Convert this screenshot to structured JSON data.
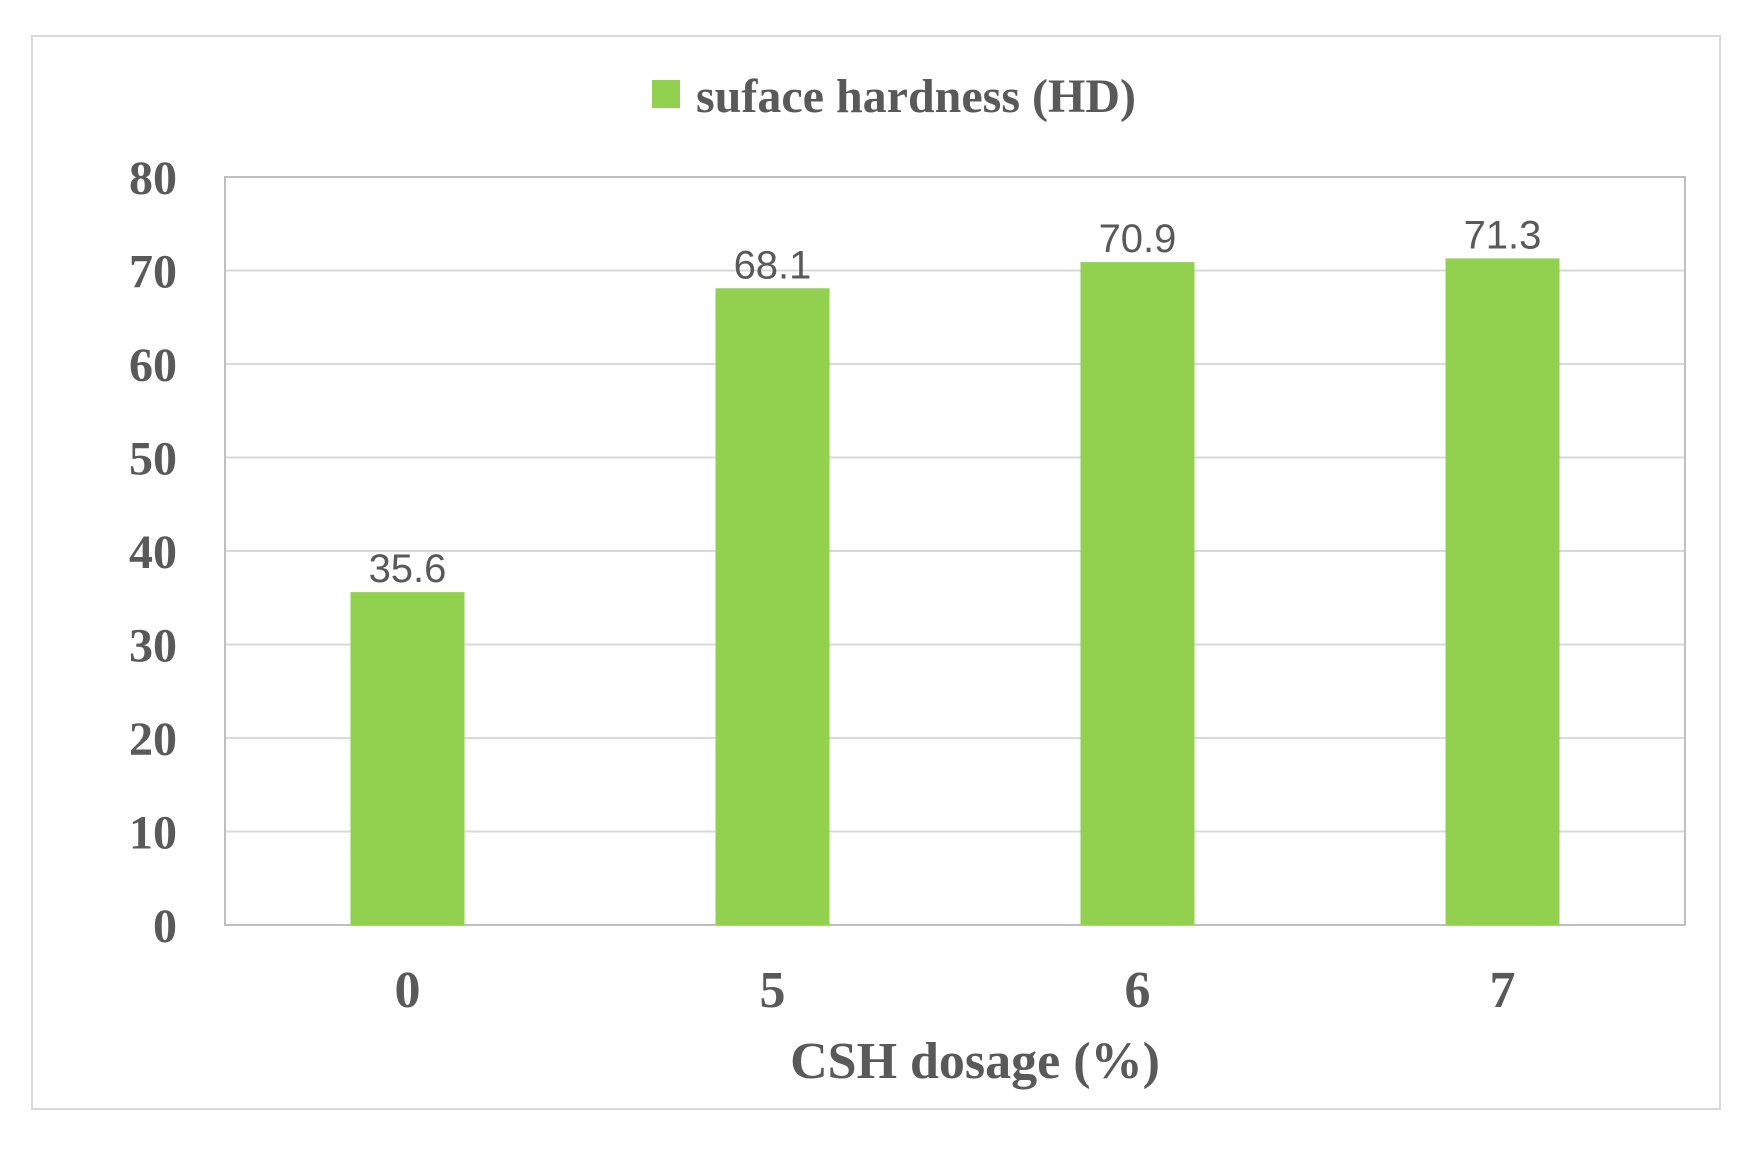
{
  "chart_data": {
    "type": "bar",
    "categories": [
      "0",
      "5",
      "6",
      "7"
    ],
    "series": [
      {
        "name": "suface hardness (HD)",
        "values": [
          35.6,
          68.1,
          70.9,
          71.3
        ],
        "color": "#92d050"
      }
    ],
    "data_labels": [
      "35.6",
      "68.1",
      "70.9",
      "71.3"
    ],
    "xlabel": "CSH dosage (%)",
    "ylabel": "",
    "ylim": [
      0,
      80
    ],
    "yticks": [
      "0",
      "10",
      "20",
      "30",
      "40",
      "50",
      "60",
      "70",
      "80"
    ],
    "grid": true,
    "legend_position": "top-center",
    "colors": {
      "bar": "#92d050",
      "grid": "#d9d9d9",
      "text": "#595959"
    }
  }
}
